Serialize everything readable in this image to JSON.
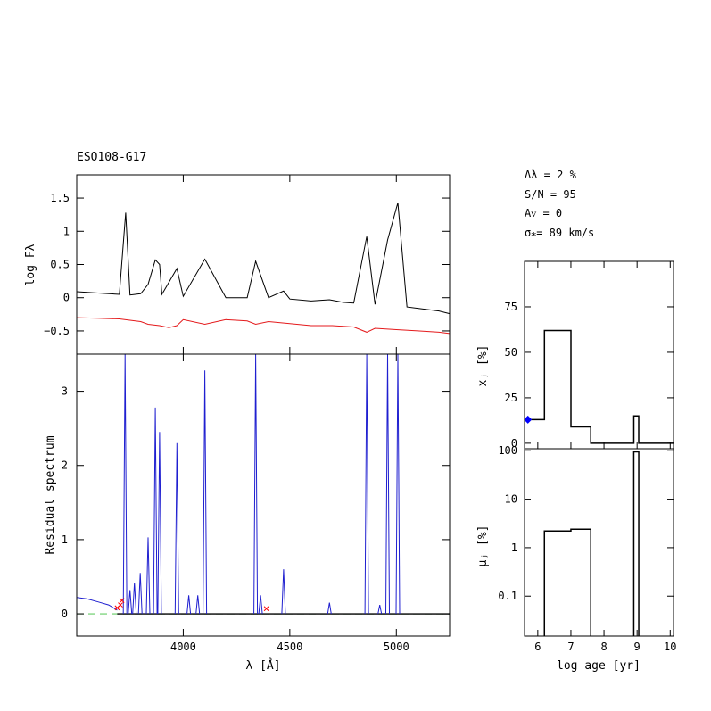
{
  "object_name": "ESO108-G17",
  "fit_stats": {
    "delta": "Δλ = 2 %",
    "sn": "S/N = 95",
    "av": "Aᴠ = 0",
    "sigma": "σ⁎= 89 km/s"
  },
  "colors": {
    "observed": "#000000",
    "model": "#e41a1c",
    "residual_emission": "#1f1fd0",
    "residual_fit": "#000000",
    "zero_line": "#66cc66",
    "masked": "#ff0000",
    "young_marker": "#0000ff"
  },
  "chart_data": [
    {
      "id": "spectrum",
      "type": "line",
      "title": "",
      "xlabel": "",
      "ylabel": "log Fλ",
      "xlim": [
        3500,
        5250
      ],
      "ylim": [
        -0.85,
        1.85
      ],
      "yticks": [
        -0.5,
        0,
        0.5,
        1,
        1.5
      ],
      "ytick_labels": [
        "−0.5",
        "0",
        "0.5",
        "1",
        "1.5"
      ],
      "series": [
        {
          "role": "observed",
          "x": [
            3500,
            3600,
            3700,
            3730,
            3750,
            3800,
            3835,
            3869,
            3889,
            3900,
            3970,
            4000,
            4101,
            4200,
            4300,
            4340,
            4400,
            4471,
            4500,
            4600,
            4686,
            4750,
            4800,
            4861,
            4900,
            4959,
            5007,
            5050,
            5100,
            5200,
            5250
          ],
          "y": [
            0.09,
            0.07,
            0.05,
            1.28,
            0.04,
            0.06,
            0.2,
            0.57,
            0.5,
            0.05,
            0.44,
            0.02,
            0.58,
            0.0,
            0.0,
            0.55,
            0.0,
            0.1,
            -0.02,
            -0.05,
            -0.03,
            -0.07,
            -0.08,
            0.92,
            -0.1,
            0.87,
            1.43,
            -0.14,
            -0.16,
            -0.2,
            -0.24
          ]
        },
        {
          "role": "model",
          "x": [
            3500,
            3600,
            3700,
            3750,
            3800,
            3835,
            3889,
            3933,
            3970,
            4000,
            4101,
            4200,
            4300,
            4340,
            4400,
            4500,
            4600,
            4700,
            4800,
            4861,
            4900,
            5000,
            5100,
            5200,
            5250
          ],
          "y": [
            -0.3,
            -0.31,
            -0.32,
            -0.34,
            -0.36,
            -0.4,
            -0.42,
            -0.45,
            -0.42,
            -0.33,
            -0.4,
            -0.33,
            -0.35,
            -0.4,
            -0.36,
            -0.39,
            -0.42,
            -0.42,
            -0.44,
            -0.52,
            -0.46,
            -0.48,
            -0.5,
            -0.52,
            -0.54
          ]
        }
      ]
    },
    {
      "id": "residual",
      "type": "line",
      "title": "",
      "xlabel": "λ [Å]",
      "ylabel": "Residual spectrum",
      "xlim": [
        3500,
        5250
      ],
      "ylim": [
        -0.3,
        3.5
      ],
      "xticks": [
        4000,
        4500,
        5000
      ],
      "xtick_labels": [
        "4000",
        "4500",
        "5000"
      ],
      "yticks": [
        0,
        1,
        2,
        3
      ],
      "ytick_labels": [
        "0",
        "1",
        "2",
        "3"
      ],
      "emission_lines": [
        {
          "x": 3727,
          "peak": 3.5
        },
        {
          "x": 3750,
          "peak": 0.32
        },
        {
          "x": 3771,
          "peak": 0.42
        },
        {
          "x": 3798,
          "peak": 0.55
        },
        {
          "x": 3835,
          "peak": 1.03
        },
        {
          "x": 3869,
          "peak": 2.78
        },
        {
          "x": 3889,
          "peak": 2.45
        },
        {
          "x": 3970,
          "peak": 2.3
        },
        {
          "x": 4026,
          "peak": 0.25
        },
        {
          "x": 4068,
          "peak": 0.25
        },
        {
          "x": 4101,
          "peak": 3.28
        },
        {
          "x": 4340,
          "peak": 3.5
        },
        {
          "x": 4363,
          "peak": 0.25
        },
        {
          "x": 4471,
          "peak": 0.6
        },
        {
          "x": 4686,
          "peak": 0.15
        },
        {
          "x": 4861,
          "peak": 3.5
        },
        {
          "x": 4922,
          "peak": 0.12
        },
        {
          "x": 4959,
          "peak": 3.5
        },
        {
          "x": 5007,
          "peak": 3.5
        }
      ],
      "blue_continuum": {
        "x": [
          3500,
          3550,
          3600,
          3650,
          3690
        ],
        "y": [
          0.22,
          0.2,
          0.16,
          0.12,
          0.05
        ]
      },
      "masked_points": [
        {
          "x": 3690,
          "y": 0.08
        },
        {
          "x": 3705,
          "y": 0.12
        },
        {
          "x": 3712,
          "y": 0.18
        },
        {
          "x": 4390,
          "y": 0.07
        }
      ]
    },
    {
      "id": "light_fraction",
      "type": "step",
      "title": "",
      "xlabel": "",
      "ylabel": "xⱼ [%]",
      "xlim": [
        5.6,
        10.1
      ],
      "ylim": [
        -3,
        100
      ],
      "yticks": [
        0,
        25,
        50,
        75
      ],
      "ytick_labels": [
        "0",
        "25",
        "50",
        "75"
      ],
      "edges": [
        5.6,
        6.2,
        7.0,
        7.6,
        8.9,
        9.05,
        10.1
      ],
      "values": [
        13,
        62,
        9,
        0,
        15,
        0
      ],
      "young_marker": {
        "x": 5.7,
        "y": 13
      }
    },
    {
      "id": "mass_fraction",
      "type": "step",
      "log_y": true,
      "title": "",
      "xlabel": "log age [yr]",
      "ylabel": "μⱼ [%]",
      "xlim": [
        5.6,
        10.1
      ],
      "ylim": [
        0.015,
        110
      ],
      "xticks": [
        6,
        7,
        8,
        9,
        10
      ],
      "xtick_labels": [
        "6",
        "7",
        "8",
        "9",
        "10"
      ],
      "yticks": [
        0.1,
        1,
        10,
        100
      ],
      "ytick_labels": [
        "0.1",
        "1",
        "10",
        "100"
      ],
      "edges": [
        6.2,
        7.0,
        7.6,
        8.9,
        9.05
      ],
      "values": [
        2.2,
        2.4,
        null,
        95
      ]
    }
  ]
}
